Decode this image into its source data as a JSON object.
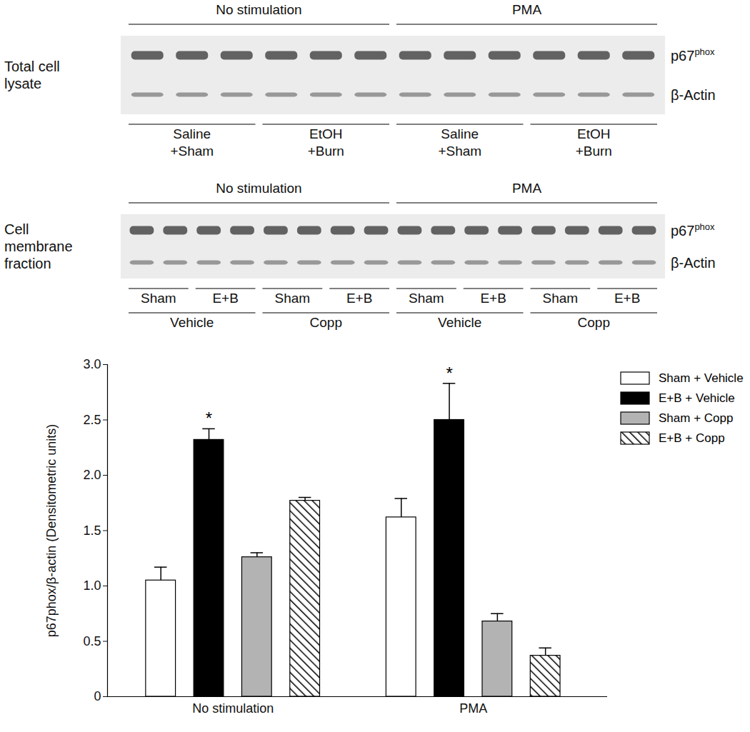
{
  "chart_data": {
    "type": "bar",
    "categories": [
      "No stimulation",
      "PMA"
    ],
    "ylabel": "p67phox/β-actin (Densitometric units)",
    "ylim": [
      0,
      3
    ],
    "yticks": [
      0,
      0.5,
      {
        "value": 1,
        "label": "1.0"
      },
      1.5,
      {
        "value": 2,
        "label": "2.0"
      },
      2.5,
      {
        "value": 3,
        "label": "3.0"
      }
    ],
    "grid": false,
    "legend": "top-right",
    "series": [
      {
        "name": "Sham + Vehicle",
        "color": "#ffffff",
        "values": [
          1.05,
          1.62
        ],
        "errors": [
          0.12,
          0.17
        ]
      },
      {
        "name": "E+B + Vehicle",
        "color": "#000000",
        "values": [
          2.32,
          2.5
        ],
        "errors": [
          0.1,
          0.33
        ]
      },
      {
        "name": "Sham + Copp",
        "color": "#b3b3b3",
        "values": [
          1.26,
          0.68
        ],
        "errors": [
          0.04,
          0.07
        ]
      },
      {
        "name": "E+B + Copp",
        "color": "#ffffff",
        "line_style": "diagonal",
        "values": [
          1.77,
          0.37
        ],
        "errors": [
          0.03,
          0.07
        ]
      }
    ],
    "annotations": [
      {
        "text": "*",
        "category": "No stimulation",
        "series": "E+B + Vehicle"
      },
      {
        "text": "*",
        "category": "PMA",
        "series": "E+B + Vehicle"
      }
    ]
  },
  "blots": [
    {
      "label": [
        "Total cell",
        "lysate"
      ],
      "proteins": [
        {
          "text": "p67",
          "sup": "phox"
        },
        {
          "text": "β-Actin"
        }
      ],
      "lanes": 12,
      "top": [
        [
          {
            "text": "No stimulation",
            "span": 6
          },
          {
            "text": "PMA",
            "span": 6
          }
        ]
      ],
      "bottom": [
        [
          {
            "text": [
              "Saline",
              "+Sham"
            ],
            "span": 3
          },
          {
            "text": [
              "EtOH",
              "+Burn"
            ],
            "span": 3
          },
          {
            "text": [
              "Saline",
              "+Sham"
            ],
            "span": 3
          },
          {
            "text": [
              "EtOH",
              "+Burn"
            ],
            "span": 3
          }
        ]
      ]
    },
    {
      "label": [
        "Cell",
        "membrane",
        "fraction"
      ],
      "proteins": [
        {
          "text": "p67",
          "sup": "phox"
        },
        {
          "text": "β-Actin"
        }
      ],
      "lanes": 16,
      "top": [
        [
          {
            "text": "No stimulation",
            "span": 8
          },
          {
            "text": "PMA",
            "span": 8
          }
        ]
      ],
      "bottom": [
        [
          {
            "text": "Sham",
            "span": 2
          },
          {
            "text": "E+B",
            "span": 2
          },
          {
            "text": "Sham",
            "span": 2
          },
          {
            "text": "E+B",
            "span": 2
          },
          {
            "text": "Sham",
            "span": 2
          },
          {
            "text": "E+B",
            "span": 2
          },
          {
            "text": "Sham",
            "span": 2
          },
          {
            "text": "E+B",
            "span": 2
          }
        ],
        [
          {
            "text": "Vehicle",
            "span": 4
          },
          {
            "text": "Copp",
            "span": 4
          },
          {
            "text": "Vehicle",
            "span": 4
          },
          {
            "text": "Copp",
            "span": 4
          }
        ]
      ]
    }
  ]
}
